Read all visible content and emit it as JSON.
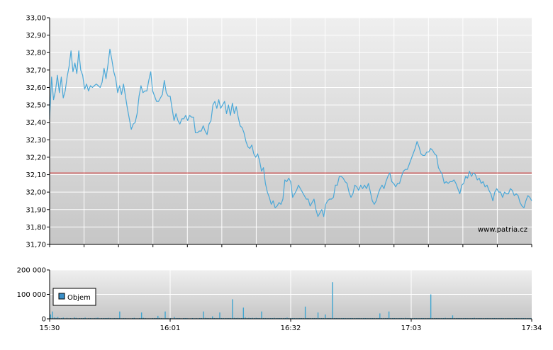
{
  "watermark": "www.patria.cz",
  "colors": {
    "price_line": "#4aa8d8",
    "reference_line": "#d03030",
    "volume_bar": "#3fa5d0",
    "legend_swatch": "#3a8fc8",
    "grid": "#ffffff",
    "bg_top": "#efefef",
    "bg_bottom": "#c6c6c6"
  },
  "chart_data": [
    {
      "type": "line",
      "title": "",
      "xlabel": "",
      "ylabel": "",
      "x_ticks": [
        "15:30",
        "16:01",
        "16:32",
        "17:03",
        "17:34"
      ],
      "x_range": [
        "15:30",
        "17:34"
      ],
      "ylim": [
        31.7,
        33.0
      ],
      "y_ticks": [
        "31,70",
        "31,80",
        "31,90",
        "32,00",
        "32,10",
        "32,20",
        "32,30",
        "32,40",
        "32,50",
        "32,60",
        "32,70",
        "32,80",
        "32,90",
        "33,00"
      ],
      "grid": true,
      "reference_line": 32.11,
      "series": [
        {
          "values": [
            32.42,
            32.66,
            32.53,
            32.58,
            32.67,
            32.57,
            32.66,
            32.54,
            32.58,
            32.66,
            32.72,
            32.81,
            32.69,
            32.74,
            32.68,
            32.81,
            32.7,
            32.67,
            32.59,
            32.62,
            32.58,
            32.61,
            32.6,
            32.61,
            32.62,
            32.61,
            32.6,
            32.63,
            32.71,
            32.65,
            32.73,
            32.82,
            32.76,
            32.69,
            32.65,
            32.57,
            32.61,
            32.56,
            32.62,
            32.55,
            32.48,
            32.42,
            32.36,
            32.39,
            32.4,
            32.45,
            32.55,
            32.61,
            32.57,
            32.58,
            32.58,
            32.64,
            32.69,
            32.58,
            32.55,
            32.52,
            32.52,
            32.54,
            32.56,
            32.64,
            32.57,
            32.55,
            32.55,
            32.48,
            32.41,
            32.45,
            32.41,
            32.39,
            32.42,
            32.42,
            32.44,
            32.41,
            32.44,
            32.43,
            32.43,
            32.34,
            32.34,
            32.35,
            32.35,
            32.38,
            32.35,
            32.33,
            32.39,
            32.41,
            32.5,
            32.52,
            32.48,
            32.53,
            32.48,
            32.5,
            32.52,
            32.45,
            32.5,
            32.44,
            32.51,
            32.45,
            32.49,
            32.43,
            32.38,
            32.37,
            32.34,
            32.29,
            32.26,
            32.25,
            32.27,
            32.22,
            32.2,
            32.22,
            32.18,
            32.12,
            32.14,
            32.05,
            32.0,
            31.97,
            31.93,
            31.95,
            31.91,
            31.92,
            31.94,
            31.93,
            31.96,
            32.07,
            32.06,
            32.08,
            32.06,
            31.97,
            31.99,
            32.01,
            32.04,
            32.02,
            32.0,
            31.98,
            31.96,
            31.96,
            31.92,
            31.94,
            31.96,
            31.9,
            31.86,
            31.88,
            31.9,
            31.86,
            31.93,
            31.95,
            31.96,
            31.96,
            31.97,
            32.04,
            32.04,
            32.09,
            32.09,
            32.08,
            32.06,
            32.05,
            32.0,
            31.97,
            31.99,
            32.04,
            32.03,
            32.01,
            32.04,
            32.02,
            32.04,
            32.02,
            32.05,
            32.0,
            31.95,
            31.93,
            31.95,
            31.99,
            32.02,
            32.04,
            32.02,
            32.06,
            32.09,
            32.11,
            32.06,
            32.05,
            32.03,
            32.05,
            32.05,
            32.09,
            32.12,
            32.13,
            32.13,
            32.16,
            32.19,
            32.22,
            32.25,
            32.29,
            32.26,
            32.22,
            32.21,
            32.21,
            32.23,
            32.23,
            32.25,
            32.24,
            32.22,
            32.21,
            32.14,
            32.12,
            32.1,
            32.05,
            32.06,
            32.05,
            32.06,
            32.06,
            32.07,
            32.05,
            32.02,
            31.99,
            32.04,
            32.05,
            32.09,
            32.08,
            32.12,
            32.09,
            32.11,
            32.1,
            32.07,
            32.08,
            32.05,
            32.06,
            32.03,
            32.04,
            32.01,
            31.99,
            31.95,
            32.0,
            32.02,
            32.0,
            32.0,
            31.97,
            32.0,
            31.99,
            31.99,
            32.02,
            32.01,
            31.98,
            31.99,
            31.98,
            31.94,
            31.92,
            31.91,
            31.95,
            31.98,
            31.97,
            31.95
          ]
        }
      ]
    },
    {
      "type": "bar",
      "title": "",
      "xlabel": "",
      "ylabel": "",
      "x_ticks": [
        "15:30",
        "16:01",
        "16:32",
        "17:03",
        "17:34"
      ],
      "ylim": [
        0,
        200000
      ],
      "y_ticks": [
        "0",
        "100 000",
        "200 000"
      ],
      "grid": true,
      "legend": {
        "position": "left",
        "entries": [
          "Objem"
        ]
      },
      "series": [
        {
          "name": "Objem",
          "values": [
            18000,
            30000,
            6000,
            4000,
            8000,
            3000,
            3000,
            5000,
            2000,
            4000,
            2000,
            3000,
            2000,
            6000,
            4000,
            2000,
            3000,
            3000,
            3000,
            5000,
            2000,
            3000,
            3000,
            2000,
            3000,
            4000,
            5000,
            2000,
            3000,
            3000,
            3000,
            3000,
            4000,
            3000,
            2000,
            3000,
            3000,
            3000,
            30000,
            2000,
            3000,
            3000,
            2000,
            2000,
            2000,
            3000,
            4000,
            2000,
            2000,
            3000,
            26000,
            4000,
            3000,
            2000,
            2000,
            2000,
            3000,
            3000,
            3000,
            12000,
            4000,
            3000,
            2000,
            30000,
            3000,
            2000,
            3000,
            2000,
            8000,
            3000,
            3000,
            3000,
            2000,
            3000,
            3000,
            3000,
            2000,
            2000,
            3000,
            2000,
            3000,
            2000,
            3000,
            3000,
            30000,
            4000,
            3000,
            3000,
            3000,
            10000,
            3000,
            3000,
            3000,
            26000,
            3000,
            3000,
            3000,
            3000,
            3000,
            3000,
            80000,
            4000,
            3000,
            4000,
            3000,
            3000,
            46000,
            6000,
            3000,
            4000,
            3000,
            4000,
            3000,
            4000,
            3000,
            3000,
            30000,
            3000,
            3000,
            3000,
            3000,
            3000,
            3000,
            4000,
            3000,
            3000,
            3000,
            3000,
            3000,
            3000,
            5000,
            3000,
            3000,
            3000,
            3000,
            3000,
            3000,
            3000,
            3000,
            3000,
            50000,
            3000,
            3000,
            3000,
            3000,
            3000,
            3000,
            26000,
            3000,
            3000,
            3000,
            18000,
            3000,
            3000,
            3000,
            150000,
            3000,
            3000,
            3000,
            3000,
            3000,
            3000,
            3000,
            3000,
            3000,
            3000,
            3000,
            3000,
            3000,
            3000,
            3000,
            3000,
            3000,
            3000,
            3000,
            3000,
            3000,
            3000,
            3000,
            3000,
            3000,
            22000,
            3000,
            3000,
            3000,
            3000,
            30000,
            3000,
            3000,
            3000,
            3000,
            3000,
            3000,
            3000,
            3000,
            4000,
            3000,
            3000,
            3000,
            3000,
            3000,
            3000,
            3000,
            3000,
            3000,
            3000,
            3000,
            3000,
            3000,
            100000,
            3000,
            3000,
            3000,
            3000,
            3000,
            3000,
            3000,
            4000,
            3000,
            3000,
            3000,
            14000,
            3000,
            3000,
            3000,
            3000,
            3000,
            3000,
            3000,
            3000,
            3000,
            3000,
            3000,
            4000,
            3000,
            3000,
            3000,
            3000,
            3000,
            3000,
            3000,
            3000,
            3000,
            3000,
            3000,
            3000,
            3000,
            3000,
            3000,
            3000,
            3000,
            3000,
            3000,
            3000,
            3000,
            3000,
            3000,
            3000,
            3000,
            3000,
            3000,
            3000,
            3000,
            3000,
            3000
          ]
        }
      ]
    }
  ]
}
